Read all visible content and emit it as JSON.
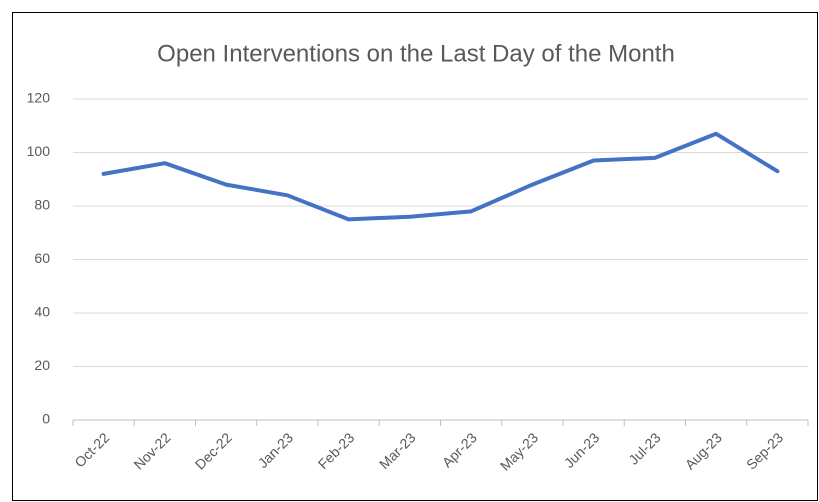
{
  "chart_data": {
    "type": "line",
    "title": "Open Interventions on the Last Day of the Month",
    "categories": [
      "Oct-22",
      "Nov-22",
      "Dec-22",
      "Jan-23",
      "Feb-23",
      "Mar-23",
      "Apr-23",
      "May-23",
      "Jun-23",
      "Jul-23",
      "Aug-23",
      "Sep-23"
    ],
    "values": [
      92,
      96,
      88,
      84,
      75,
      76,
      78,
      88,
      97,
      98,
      107,
      93
    ],
    "color": "#4472c4",
    "ylim": [
      0,
      120
    ],
    "yticks": [
      0,
      20,
      40,
      60,
      80,
      100,
      120
    ],
    "grid": true
  }
}
